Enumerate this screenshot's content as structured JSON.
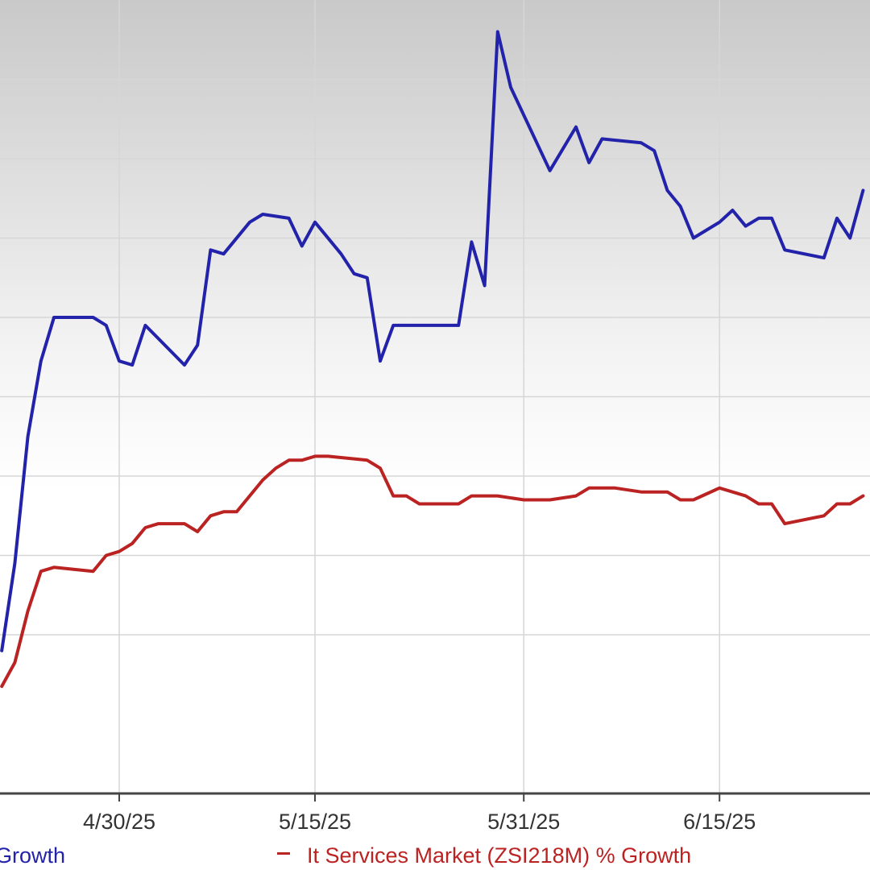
{
  "chart_data": {
    "type": "line",
    "x_ticks": [
      "4/30/25",
      "5/15/25",
      "5/31/25",
      "6/15/25"
    ],
    "x_tick_dates": [
      "2025-04-30",
      "2025-05-15",
      "2025-05-31",
      "2025-06-15"
    ],
    "grid": true,
    "legend_position": "bottom",
    "series": [
      {
        "name": "Growth",
        "color": "#2222aa",
        "points": [
          [
            "2025-04-21",
            28
          ],
          [
            "2025-04-22",
            39
          ],
          [
            "2025-04-23",
            55
          ],
          [
            "2025-04-24",
            64.5
          ],
          [
            "2025-04-25",
            70
          ],
          [
            "2025-04-26",
            70
          ],
          [
            "2025-04-27",
            70
          ],
          [
            "2025-04-28",
            70
          ],
          [
            "2025-04-29",
            69
          ],
          [
            "2025-04-30",
            64.5
          ],
          [
            "2025-05-01",
            64
          ],
          [
            "2025-05-02",
            69
          ],
          [
            "2025-05-05",
            64
          ],
          [
            "2025-05-06",
            66.5
          ],
          [
            "2025-05-07",
            78.5
          ],
          [
            "2025-05-08",
            78
          ],
          [
            "2025-05-10",
            82
          ],
          [
            "2025-05-11",
            83
          ],
          [
            "2025-05-13",
            82.5
          ],
          [
            "2025-05-14",
            79
          ],
          [
            "2025-05-15",
            82
          ],
          [
            "2025-05-17",
            78
          ],
          [
            "2025-05-18",
            75.5
          ],
          [
            "2025-05-19",
            75
          ],
          [
            "2025-05-20",
            64.5
          ],
          [
            "2025-05-21",
            69
          ],
          [
            "2025-05-26",
            69
          ],
          [
            "2025-05-27",
            79.5
          ],
          [
            "2025-05-28",
            74
          ],
          [
            "2025-05-29",
            106
          ],
          [
            "2025-05-30",
            99
          ],
          [
            "2025-06-02",
            88.5
          ],
          [
            "2025-06-04",
            94
          ],
          [
            "2025-06-05",
            89.5
          ],
          [
            "2025-06-06",
            92.5
          ],
          [
            "2025-06-09",
            92
          ],
          [
            "2025-06-10",
            91
          ],
          [
            "2025-06-11",
            86
          ],
          [
            "2025-06-12",
            84
          ],
          [
            "2025-06-13",
            80
          ],
          [
            "2025-06-15",
            82
          ],
          [
            "2025-06-16",
            83.5
          ],
          [
            "2025-06-17",
            81.5
          ],
          [
            "2025-06-18",
            82.5
          ],
          [
            "2025-06-19",
            82.5
          ],
          [
            "2025-06-20",
            78.5
          ],
          [
            "2025-06-23",
            77.5
          ],
          [
            "2025-06-24",
            82.5
          ],
          [
            "2025-06-25",
            80
          ],
          [
            "2025-06-26",
            86
          ]
        ]
      },
      {
        "name": "It Services Market (ZSI218M) % Growth",
        "color": "#bb2222",
        "points": [
          [
            "2025-04-21",
            23.5
          ],
          [
            "2025-04-22",
            26.5
          ],
          [
            "2025-04-23",
            33
          ],
          [
            "2025-04-24",
            38
          ],
          [
            "2025-04-25",
            38.5
          ],
          [
            "2025-04-28",
            38
          ],
          [
            "2025-04-29",
            40
          ],
          [
            "2025-04-30",
            40.5
          ],
          [
            "2025-05-01",
            41.5
          ],
          [
            "2025-05-02",
            43.5
          ],
          [
            "2025-05-03",
            44
          ],
          [
            "2025-05-05",
            44
          ],
          [
            "2025-05-06",
            43
          ],
          [
            "2025-05-07",
            45
          ],
          [
            "2025-05-08",
            45.5
          ],
          [
            "2025-05-09",
            45.5
          ],
          [
            "2025-05-11",
            49.5
          ],
          [
            "2025-05-12",
            51
          ],
          [
            "2025-05-13",
            52
          ],
          [
            "2025-05-14",
            52
          ],
          [
            "2025-05-15",
            52.5
          ],
          [
            "2025-05-16",
            52.5
          ],
          [
            "2025-05-19",
            52
          ],
          [
            "2025-05-20",
            51
          ],
          [
            "2025-05-21",
            47.5
          ],
          [
            "2025-05-22",
            47.5
          ],
          [
            "2025-05-23",
            46.5
          ],
          [
            "2025-05-26",
            46.5
          ],
          [
            "2025-05-27",
            47.5
          ],
          [
            "2025-05-28",
            47.5
          ],
          [
            "2025-05-29",
            47.5
          ],
          [
            "2025-05-31",
            47
          ],
          [
            "2025-06-02",
            47
          ],
          [
            "2025-06-04",
            47.5
          ],
          [
            "2025-06-05",
            48.5
          ],
          [
            "2025-06-06",
            48.5
          ],
          [
            "2025-06-07",
            48.5
          ],
          [
            "2025-06-09",
            48
          ],
          [
            "2025-06-10",
            48
          ],
          [
            "2025-06-11",
            48
          ],
          [
            "2025-06-12",
            47
          ],
          [
            "2025-06-13",
            47
          ],
          [
            "2025-06-15",
            48.5
          ],
          [
            "2025-06-16",
            48
          ],
          [
            "2025-06-17",
            47.5
          ],
          [
            "2025-06-18",
            46.5
          ],
          [
            "2025-06-19",
            46.5
          ],
          [
            "2025-06-20",
            44
          ],
          [
            "2025-06-23",
            45
          ],
          [
            "2025-06-24",
            46.5
          ],
          [
            "2025-06-25",
            46.5
          ],
          [
            "2025-06-26",
            47.5
          ]
        ]
      }
    ]
  },
  "legend": {
    "items": [
      {
        "label": "Growth",
        "color": "#2222aa"
      },
      {
        "label": "It Services Market (ZSI218M) % Growth",
        "color": "#bb2222"
      }
    ]
  }
}
